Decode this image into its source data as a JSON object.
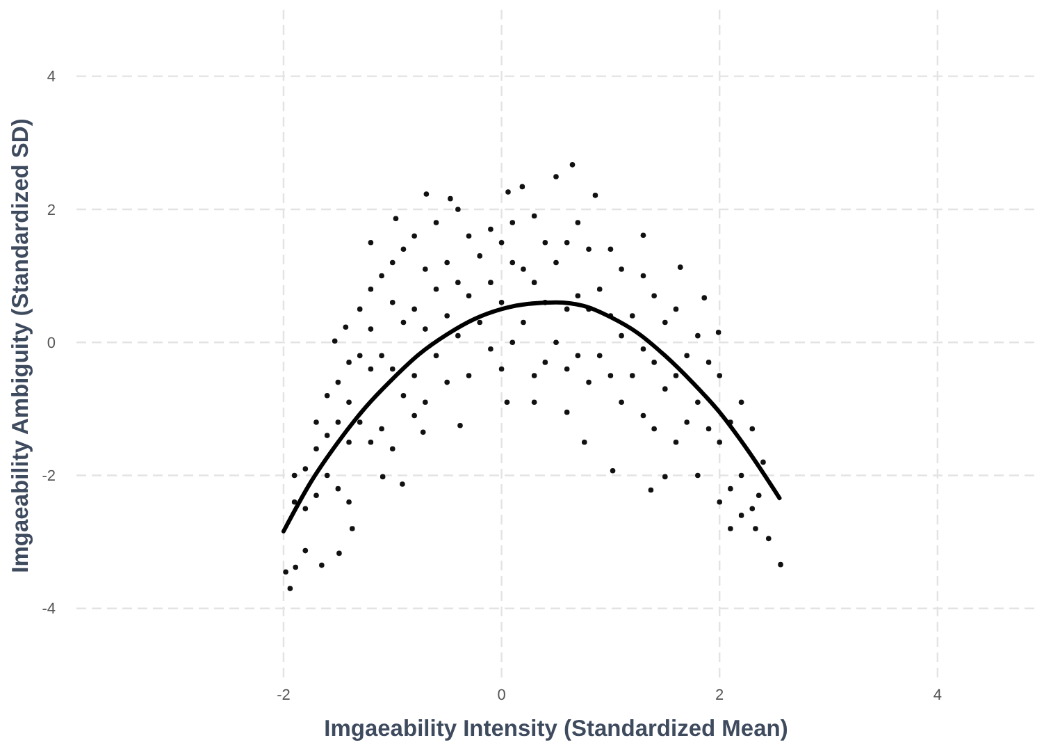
{
  "chart_data": {
    "type": "scatter",
    "xlabel": "Imgaeability Intensity (Standardized Mean)",
    "ylabel": "Imgaeability Ambiguity (Standardized SD)",
    "xlim": [
      -3.9,
      4.9
    ],
    "ylim": [
      -5.1,
      5
    ],
    "xticks": [
      -2,
      0,
      2,
      4
    ],
    "yticks": [
      -4,
      -2,
      0,
      2,
      4
    ],
    "grid": true,
    "marker": "circle",
    "series": [
      {
        "color": "#111111",
        "x": [
          0.65,
          0.5,
          0.19,
          0.06,
          -0.69,
          -0.47,
          0.86,
          -0.97,
          -1.2,
          1.3,
          1.64,
          1.86,
          1.99,
          -1.43,
          -1.53,
          -1.98,
          -1.94,
          -1.89,
          -1.8,
          -1.65,
          -1.49,
          -1.37,
          -0.91,
          -1.09,
          2.56,
          2.45,
          2.33,
          2.1,
          1.37,
          1.5,
          1.02,
          0.76,
          2.2,
          2.36,
          0.05,
          -0.38,
          -0.72,
          0.3,
          0.6,
          -1.9,
          -1.9,
          -1.8,
          -1.8,
          -1.7,
          -1.7,
          -1.7,
          -1.6,
          -1.6,
          -1.6,
          -1.5,
          -1.5,
          -1.5,
          -1.4,
          -1.4,
          -1.4,
          -1.4,
          -1.3,
          -1.3,
          -1.3,
          -1.2,
          -1.2,
          -1.2,
          -1.2,
          -1.1,
          -1.1,
          -1.1,
          -1,
          -1,
          -1,
          -1,
          -0.9,
          -0.9,
          -0.9,
          -0.8,
          -0.8,
          -0.8,
          -0.8,
          -0.7,
          -0.7,
          -0.7,
          -0.6,
          -0.6,
          -0.6,
          -0.5,
          -0.5,
          -0.5,
          -0.4,
          -0.4,
          -0.4,
          -0.3,
          -0.3,
          -0.3,
          -0.2,
          -0.2,
          -0.1,
          -0.1,
          -0.1,
          0,
          0,
          0,
          0.1,
          0.1,
          0.1,
          0.2,
          0.2,
          0.3,
          0.3,
          0.3,
          0.4,
          0.4,
          0.4,
          0.5,
          0.5,
          0.6,
          0.6,
          0.6,
          0.7,
          0.7,
          0.7,
          0.8,
          0.8,
          0.8,
          0.9,
          0.9,
          1,
          1,
          1,
          1.1,
          1.1,
          1.1,
          1.2,
          1.2,
          1.3,
          1.3,
          1.3,
          1.4,
          1.4,
          1.4,
          1.5,
          1.5,
          1.6,
          1.6,
          1.6,
          1.7,
          1.7,
          1.8,
          1.8,
          1.8,
          1.9,
          1.9,
          2,
          2,
          2,
          2.1,
          2.1,
          2.2,
          2.2,
          2.3,
          2.3,
          2.4
        ],
        "values": [
          2.67,
          2.49,
          2.34,
          2.26,
          2.23,
          2.16,
          2.21,
          1.86,
          1.5,
          1.61,
          1.13,
          0.67,
          0.15,
          0.23,
          0.02,
          -3.45,
          -3.7,
          -3.38,
          -3.13,
          -3.35,
          -3.17,
          -2.8,
          -2.13,
          -2.02,
          -3.34,
          -2.95,
          -2.8,
          -2.8,
          -2.22,
          -2.02,
          -1.93,
          -1.5,
          -2.6,
          -2.3,
          -0.9,
          -1.25,
          -1.35,
          -0.9,
          -1.05,
          -2.4,
          -2,
          -1.9,
          -2.5,
          -1.6,
          -2.3,
          -1.2,
          -0.8,
          -1.4,
          -2,
          -0.6,
          -1.2,
          -2.2,
          -0.3,
          -0.9,
          -1.5,
          -2.4,
          0.5,
          -0.2,
          -1.2,
          0.8,
          0.2,
          -0.4,
          -1.5,
          1,
          -0.2,
          -1.3,
          1.2,
          0.6,
          -0.4,
          -1.6,
          1.4,
          0.3,
          -0.8,
          1.6,
          0.5,
          -0.5,
          -1.1,
          1.1,
          0.2,
          -0.9,
          1.8,
          0.8,
          -0.2,
          1.2,
          0.4,
          -0.6,
          2,
          0.9,
          0.1,
          1.6,
          0.7,
          -0.5,
          1.3,
          0.3,
          1.7,
          0.9,
          -0.1,
          1.5,
          0.6,
          -0.4,
          1.8,
          1.2,
          0,
          1.1,
          0.3,
          1.9,
          0.9,
          -0.5,
          1.5,
          0.6,
          -0.3,
          1.2,
          0,
          1.5,
          0.5,
          -0.4,
          1.8,
          0.7,
          -0.2,
          1.4,
          0.5,
          -0.6,
          0.8,
          -0.2,
          1.4,
          0.4,
          -0.5,
          1.1,
          0.1,
          -0.9,
          0.4,
          -0.5,
          1,
          -0.1,
          -1.1,
          0.7,
          -0.3,
          -1.3,
          0.3,
          -0.7,
          0.5,
          -0.5,
          -1.5,
          -0.2,
          -1.2,
          0.1,
          -0.9,
          -2,
          -0.3,
          -1.3,
          -0.5,
          -1.5,
          -2.4,
          -1.2,
          -2.2,
          -0.9,
          -2,
          -1.3,
          -2.5,
          -1.8
        ]
      },
      {
        "type": "line",
        "color": "#000000",
        "line_style": "solid",
        "marker": "none",
        "x": [
          -2,
          -1.75,
          -1.5,
          -1.25,
          -1,
          -0.75,
          -0.5,
          -0.25,
          0,
          0.25,
          0.5,
          0.75,
          1,
          1.25,
          1.5,
          1.75,
          2,
          2.25,
          2.55
        ],
        "values": [
          -2.84,
          -2.1,
          -1.5,
          -0.98,
          -0.55,
          -0.17,
          0.12,
          0.35,
          0.5,
          0.58,
          0.6,
          0.55,
          0.38,
          0.14,
          -0.2,
          -0.6,
          -1.05,
          -1.6,
          -2.34
        ]
      }
    ]
  }
}
